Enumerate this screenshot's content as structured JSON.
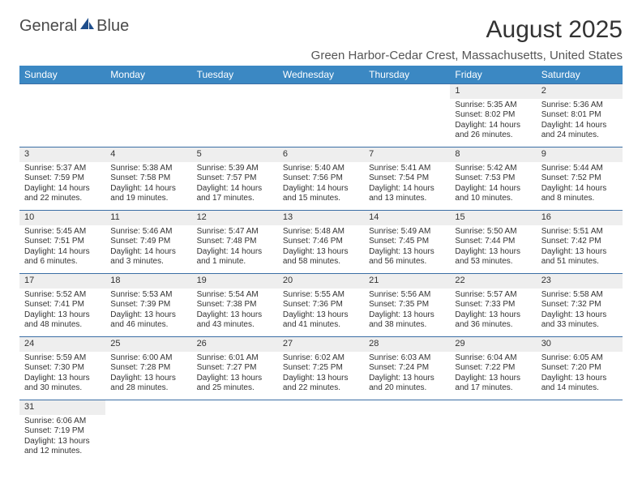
{
  "logo": {
    "part1": "General",
    "part2": "Blue"
  },
  "title": "August 2025",
  "location": "Green Harbor-Cedar Crest, Massachusetts, United States",
  "colors": {
    "header_bg": "#3b88c3",
    "header_fg": "#ffffff",
    "row_border": "#3b6ea5",
    "daynum_bg": "#eeeeee",
    "text": "#333333",
    "logo_gray": "#4a4a4a",
    "logo_blue": "#1e4e8c"
  },
  "weekdays": [
    "Sunday",
    "Monday",
    "Tuesday",
    "Wednesday",
    "Thursday",
    "Friday",
    "Saturday"
  ],
  "weeks": [
    [
      null,
      null,
      null,
      null,
      null,
      {
        "n": "1",
        "sr": "5:35 AM",
        "ss": "8:02 PM",
        "dl": "14 hours and 26 minutes."
      },
      {
        "n": "2",
        "sr": "5:36 AM",
        "ss": "8:01 PM",
        "dl": "14 hours and 24 minutes."
      }
    ],
    [
      {
        "n": "3",
        "sr": "5:37 AM",
        "ss": "7:59 PM",
        "dl": "14 hours and 22 minutes."
      },
      {
        "n": "4",
        "sr": "5:38 AM",
        "ss": "7:58 PM",
        "dl": "14 hours and 19 minutes."
      },
      {
        "n": "5",
        "sr": "5:39 AM",
        "ss": "7:57 PM",
        "dl": "14 hours and 17 minutes."
      },
      {
        "n": "6",
        "sr": "5:40 AM",
        "ss": "7:56 PM",
        "dl": "14 hours and 15 minutes."
      },
      {
        "n": "7",
        "sr": "5:41 AM",
        "ss": "7:54 PM",
        "dl": "14 hours and 13 minutes."
      },
      {
        "n": "8",
        "sr": "5:42 AM",
        "ss": "7:53 PM",
        "dl": "14 hours and 10 minutes."
      },
      {
        "n": "9",
        "sr": "5:44 AM",
        "ss": "7:52 PM",
        "dl": "14 hours and 8 minutes."
      }
    ],
    [
      {
        "n": "10",
        "sr": "5:45 AM",
        "ss": "7:51 PM",
        "dl": "14 hours and 6 minutes."
      },
      {
        "n": "11",
        "sr": "5:46 AM",
        "ss": "7:49 PM",
        "dl": "14 hours and 3 minutes."
      },
      {
        "n": "12",
        "sr": "5:47 AM",
        "ss": "7:48 PM",
        "dl": "14 hours and 1 minute."
      },
      {
        "n": "13",
        "sr": "5:48 AM",
        "ss": "7:46 PM",
        "dl": "13 hours and 58 minutes."
      },
      {
        "n": "14",
        "sr": "5:49 AM",
        "ss": "7:45 PM",
        "dl": "13 hours and 56 minutes."
      },
      {
        "n": "15",
        "sr": "5:50 AM",
        "ss": "7:44 PM",
        "dl": "13 hours and 53 minutes."
      },
      {
        "n": "16",
        "sr": "5:51 AM",
        "ss": "7:42 PM",
        "dl": "13 hours and 51 minutes."
      }
    ],
    [
      {
        "n": "17",
        "sr": "5:52 AM",
        "ss": "7:41 PM",
        "dl": "13 hours and 48 minutes."
      },
      {
        "n": "18",
        "sr": "5:53 AM",
        "ss": "7:39 PM",
        "dl": "13 hours and 46 minutes."
      },
      {
        "n": "19",
        "sr": "5:54 AM",
        "ss": "7:38 PM",
        "dl": "13 hours and 43 minutes."
      },
      {
        "n": "20",
        "sr": "5:55 AM",
        "ss": "7:36 PM",
        "dl": "13 hours and 41 minutes."
      },
      {
        "n": "21",
        "sr": "5:56 AM",
        "ss": "7:35 PM",
        "dl": "13 hours and 38 minutes."
      },
      {
        "n": "22",
        "sr": "5:57 AM",
        "ss": "7:33 PM",
        "dl": "13 hours and 36 minutes."
      },
      {
        "n": "23",
        "sr": "5:58 AM",
        "ss": "7:32 PM",
        "dl": "13 hours and 33 minutes."
      }
    ],
    [
      {
        "n": "24",
        "sr": "5:59 AM",
        "ss": "7:30 PM",
        "dl": "13 hours and 30 minutes."
      },
      {
        "n": "25",
        "sr": "6:00 AM",
        "ss": "7:28 PM",
        "dl": "13 hours and 28 minutes."
      },
      {
        "n": "26",
        "sr": "6:01 AM",
        "ss": "7:27 PM",
        "dl": "13 hours and 25 minutes."
      },
      {
        "n": "27",
        "sr": "6:02 AM",
        "ss": "7:25 PM",
        "dl": "13 hours and 22 minutes."
      },
      {
        "n": "28",
        "sr": "6:03 AM",
        "ss": "7:24 PM",
        "dl": "13 hours and 20 minutes."
      },
      {
        "n": "29",
        "sr": "6:04 AM",
        "ss": "7:22 PM",
        "dl": "13 hours and 17 minutes."
      },
      {
        "n": "30",
        "sr": "6:05 AM",
        "ss": "7:20 PM",
        "dl": "13 hours and 14 minutes."
      }
    ],
    [
      {
        "n": "31",
        "sr": "6:06 AM",
        "ss": "7:19 PM",
        "dl": "13 hours and 12 minutes."
      },
      null,
      null,
      null,
      null,
      null,
      null
    ]
  ],
  "labels": {
    "sunrise": "Sunrise: ",
    "sunset": "Sunset: ",
    "daylight": "Daylight: "
  }
}
